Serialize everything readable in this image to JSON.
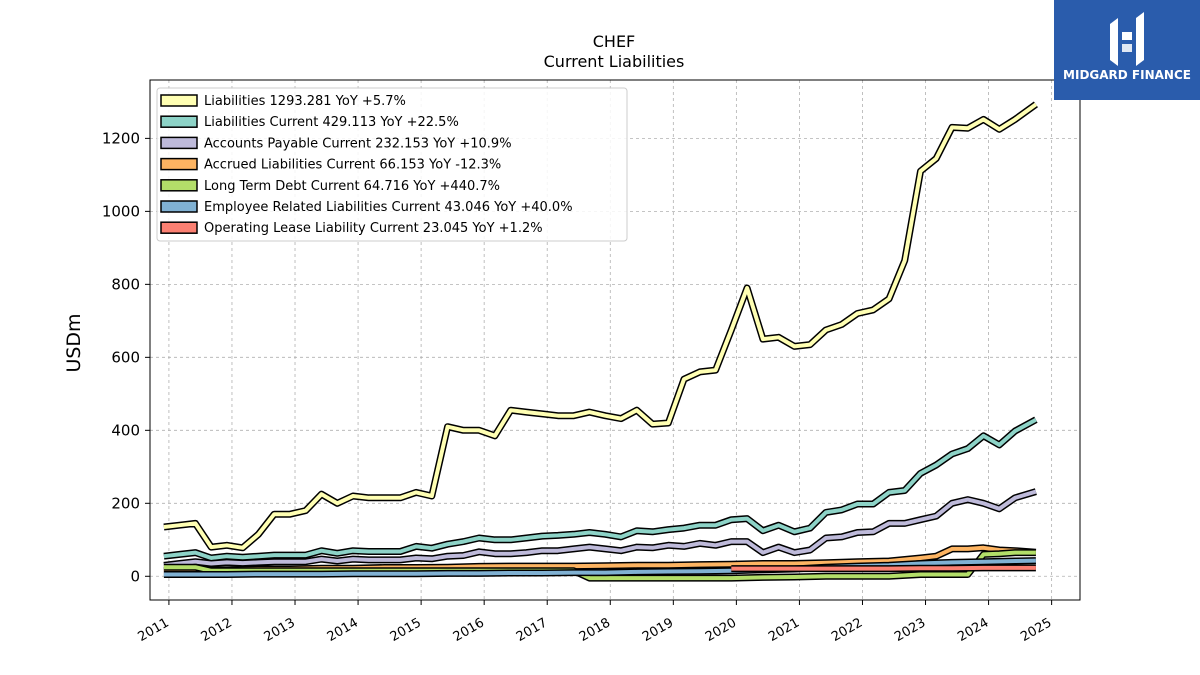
{
  "brand": {
    "name": "MIDGARD FINANCE",
    "logo_icon": "midgard-logo-icon",
    "color": "#2a5cac"
  },
  "chart_data": {
    "type": "line",
    "title": "CHEF",
    "subtitle": "Current  Liabilities",
    "ylabel": "USDm",
    "xlabel": "",
    "ylim": [
      -65,
      1360
    ],
    "xlim": [
      2010.7,
      2025.45
    ],
    "yticks": [
      0,
      200,
      400,
      600,
      800,
      1000,
      1200
    ],
    "xticks": [
      "2011",
      "2012",
      "2013",
      "2014",
      "2015",
      "2016",
      "2017",
      "2018",
      "2019",
      "2020",
      "2021",
      "2022",
      "2023",
      "2024",
      "2025"
    ],
    "grid": true,
    "legend_position": "top-left",
    "series": [
      {
        "name": "Liabilities  1293.281 YoY +5.7%",
        "color": "#ffffb3",
        "x": [
          2010.92,
          2011.17,
          2011.42,
          2011.67,
          2011.92,
          2012.17,
          2012.42,
          2012.67,
          2012.92,
          2013.17,
          2013.42,
          2013.67,
          2013.92,
          2014.17,
          2014.42,
          2014.67,
          2014.92,
          2015.17,
          2015.42,
          2015.67,
          2015.92,
          2016.17,
          2016.42,
          2016.67,
          2016.92,
          2017.17,
          2017.42,
          2017.67,
          2017.92,
          2018.17,
          2018.42,
          2018.67,
          2018.92,
          2019.17,
          2019.42,
          2019.67,
          2019.92,
          2020.17,
          2020.42,
          2020.67,
          2020.92,
          2021.17,
          2021.42,
          2021.67,
          2021.92,
          2022.17,
          2022.42,
          2022.67,
          2022.92,
          2023.17,
          2023.42,
          2023.67,
          2023.92,
          2024.17,
          2024.42,
          2024.75
        ],
        "values": [
          135,
          140,
          145,
          80,
          85,
          78,
          115,
          170,
          170,
          180,
          225,
          200,
          220,
          215,
          215,
          215,
          230,
          220,
          410,
          400,
          400,
          385,
          455,
          450,
          445,
          440,
          440,
          450,
          440,
          432,
          455,
          417,
          420,
          540,
          560,
          565,
          675,
          790,
          650,
          655,
          630,
          635,
          675,
          690,
          720,
          730,
          760,
          865,
          1110,
          1145,
          1230,
          1228,
          1252,
          1225,
          1252,
          1293
        ]
      },
      {
        "name": "Liabilities Current  429.113 YoY +22.5%",
        "color": "#8dd3c7",
        "x": [
          2010.92,
          2011.17,
          2011.42,
          2011.67,
          2011.92,
          2012.17,
          2012.42,
          2012.67,
          2012.92,
          2013.17,
          2013.42,
          2013.67,
          2013.92,
          2014.17,
          2014.42,
          2014.67,
          2014.92,
          2015.17,
          2015.42,
          2015.67,
          2015.92,
          2016.17,
          2016.42,
          2016.67,
          2016.92,
          2017.17,
          2017.42,
          2017.67,
          2017.92,
          2018.17,
          2018.42,
          2018.67,
          2018.92,
          2019.17,
          2019.42,
          2019.67,
          2019.92,
          2020.17,
          2020.42,
          2020.67,
          2020.92,
          2021.17,
          2021.42,
          2021.67,
          2021.92,
          2022.17,
          2022.42,
          2022.67,
          2022.92,
          2023.17,
          2023.42,
          2023.67,
          2023.92,
          2024.17,
          2024.42,
          2024.75
        ],
        "values": [
          55,
          60,
          65,
          50,
          55,
          52,
          55,
          58,
          58,
          58,
          70,
          63,
          70,
          68,
          68,
          68,
          82,
          77,
          88,
          95,
          105,
          100,
          100,
          105,
          110,
          112,
          115,
          120,
          115,
          108,
          125,
          122,
          128,
          132,
          140,
          140,
          155,
          158,
          125,
          140,
          122,
          132,
          175,
          182,
          198,
          198,
          230,
          235,
          282,
          305,
          335,
          350,
          385,
          360,
          398,
          429
        ]
      },
      {
        "name": "Accounts Payable Current  232.153 YoY +10.9%",
        "color": "#bebada",
        "x": [
          2010.92,
          2011.17,
          2011.42,
          2011.67,
          2011.92,
          2012.17,
          2012.42,
          2012.67,
          2012.92,
          2013.17,
          2013.42,
          2013.67,
          2013.92,
          2014.17,
          2014.42,
          2014.67,
          2014.92,
          2015.17,
          2015.42,
          2015.67,
          2015.92,
          2016.17,
          2016.42,
          2016.67,
          2016.92,
          2017.17,
          2017.42,
          2017.67,
          2017.92,
          2018.17,
          2018.42,
          2018.67,
          2018.92,
          2019.17,
          2019.42,
          2019.67,
          2019.92,
          2020.17,
          2020.42,
          2020.67,
          2020.92,
          2021.17,
          2021.42,
          2021.67,
          2021.92,
          2022.17,
          2022.42,
          2022.67,
          2022.92,
          2023.17,
          2023.42,
          2023.67,
          2023.92,
          2024.17,
          2024.42,
          2024.75
        ],
        "values": [
          30,
          35,
          40,
          35,
          38,
          36,
          38,
          40,
          40,
          40,
          47,
          42,
          47,
          45,
          45,
          45,
          50,
          48,
          55,
          57,
          67,
          62,
          62,
          65,
          70,
          70,
          75,
          80,
          75,
          70,
          80,
          78,
          85,
          82,
          90,
          85,
          95,
          95,
          65,
          80,
          65,
          72,
          105,
          108,
          120,
          122,
          145,
          145,
          155,
          165,
          200,
          210,
          200,
          185,
          215,
          232
        ]
      },
      {
        "name": "Accrued Liabilities Current  66.153 YoY -12.3%",
        "color": "#fdb462",
        "x": [
          2010.92,
          2011.42,
          2011.92,
          2012.42,
          2012.92,
          2013.42,
          2013.92,
          2014.42,
          2014.92,
          2015.42,
          2015.92,
          2016.42,
          2016.92,
          2017.42,
          2017.92,
          2018.42,
          2018.92,
          2019.42,
          2019.92,
          2020.42,
          2020.92,
          2021.42,
          2021.92,
          2022.42,
          2022.92,
          2023.17,
          2023.42,
          2023.67,
          2023.92,
          2024.17,
          2024.42,
          2024.75
        ],
        "values": [
          15,
          18,
          18,
          20,
          20,
          22,
          22,
          24,
          24,
          25,
          27,
          28,
          28,
          28,
          29,
          30,
          30,
          32,
          33,
          35,
          35,
          37,
          40,
          42,
          50,
          55,
          75,
          75,
          78,
          72,
          70,
          66
        ]
      },
      {
        "name": "Long Term Debt Current  64.716 YoY +440.7%",
        "color": "#b3de69",
        "x": [
          2010.92,
          2011.42,
          2011.67,
          2011.92,
          2012.42,
          2012.92,
          2013.42,
          2013.92,
          2014.42,
          2014.92,
          2015.42,
          2015.92,
          2016.42,
          2016.92,
          2017.42,
          2017.67,
          2017.92,
          2018.42,
          2018.92,
          2019.42,
          2019.92,
          2020.42,
          2020.92,
          2021.42,
          2021.92,
          2022.42,
          2022.92,
          2023.42,
          2023.67,
          2023.92,
          2024.17,
          2024.42,
          2024.75
        ],
        "values": [
          25,
          25,
          15,
          15,
          15,
          15,
          15,
          15,
          15,
          15,
          15,
          15,
          15,
          15,
          15,
          -5,
          -5,
          -5,
          -5,
          -5,
          -5,
          -3,
          -2,
          0,
          0,
          0,
          5,
          5,
          5,
          60,
          62,
          65,
          65
        ]
      },
      {
        "name": "Employee Related Liabilities Current  43.046 YoY +40.0%",
        "color": "#80b1d3",
        "x": [
          2010.92,
          2011.42,
          2011.92,
          2012.42,
          2012.92,
          2013.42,
          2013.92,
          2014.42,
          2014.92,
          2015.42,
          2015.92,
          2016.42,
          2016.92,
          2017.42,
          2017.92,
          2018.42,
          2018.92,
          2019.42,
          2019.92,
          2020.42,
          2020.92,
          2021.42,
          2021.92,
          2022.42,
          2022.92,
          2023.42,
          2023.92,
          2024.42,
          2024.75
        ],
        "values": [
          5,
          5,
          5,
          6,
          6,
          6,
          7,
          7,
          7,
          8,
          8,
          9,
          9,
          10,
          10,
          12,
          13,
          14,
          15,
          18,
          20,
          25,
          28,
          30,
          35,
          38,
          40,
          42,
          43
        ]
      },
      {
        "name": "Operating Lease Liability Current  23.045 YoY +1.2%",
        "color": "#fb8072",
        "x": [
          2019.92,
          2020.42,
          2020.92,
          2021.42,
          2021.92,
          2022.42,
          2022.92,
          2023.42,
          2023.92,
          2024.42,
          2024.75
        ],
        "values": [
          21,
          21,
          21,
          21,
          21,
          21,
          22,
          22,
          23,
          23,
          23
        ]
      }
    ]
  }
}
